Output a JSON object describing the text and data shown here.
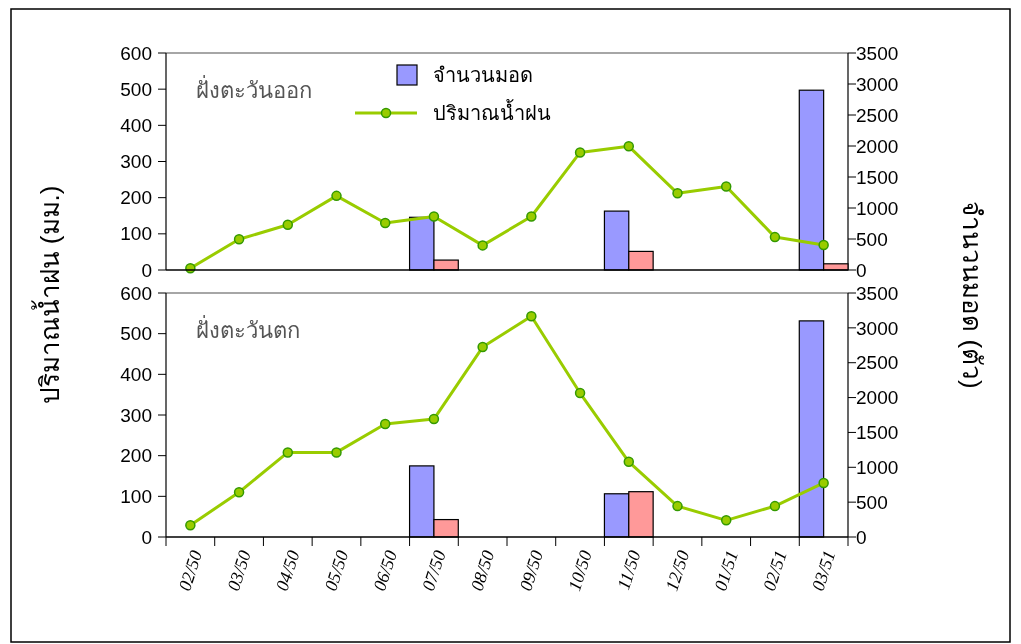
{
  "chart_data": [
    {
      "type": "bar",
      "title": "ฝั่งตะวันออก",
      "ylabel": "ปริมาณน้ำฝน (มม.)",
      "y2label": "จำนวนมอด (ตัว)",
      "categories": [
        null,
        null,
        null,
        null,
        null,
        null,
        null,
        null,
        null,
        null,
        null,
        null,
        null,
        null
      ],
      "series": [
        {
          "name": "จำนวนมอด",
          "axis": "y2",
          "color": "#9999ff",
          "values": [
            null,
            null,
            null,
            null,
            null,
            850,
            null,
            null,
            null,
            950,
            null,
            null,
            null,
            2900
          ]
        },
        {
          "axis": "y2",
          "color": "#ff9999",
          "values": [
            null,
            null,
            null,
            null,
            null,
            160,
            null,
            null,
            null,
            300,
            null,
            null,
            null,
            100
          ]
        },
        {
          "name": "ปริมาณน้ำฝน",
          "type": "line",
          "color": "#99cc00",
          "values": [
            5,
            85,
            125,
            205,
            130,
            148,
            68,
            148,
            325,
            342,
            212,
            231,
            91,
            69
          ]
        }
      ],
      "marker": "circle",
      "ylim": [
        0,
        600
      ],
      "yticks": [
        0,
        100,
        200,
        300,
        400,
        500,
        600
      ],
      "y2lim": [
        0,
        3500
      ],
      "y2ticks": [
        0,
        500,
        1000,
        1500,
        2000,
        2500,
        3000,
        3500
      ],
      "legend": "top",
      "tick_labels": "y"
    },
    {
      "type": "bar",
      "title": "ฝั่งตะวันตก",
      "categories": [
        "02/50",
        "03/50",
        "04/50",
        "05/50",
        "06/50",
        "07/50",
        "08/50",
        "09/50",
        "10/50",
        "11/50",
        "12/50",
        "01/51",
        "02/51",
        "03/51"
      ],
      "series": [
        {
          "axis": "y2",
          "color": "#9999ff",
          "values": [
            null,
            null,
            null,
            null,
            null,
            1020,
            null,
            null,
            null,
            620,
            null,
            null,
            null,
            3100
          ]
        },
        {
          "axis": "y2",
          "color": "#ff9999",
          "values": [
            null,
            null,
            null,
            null,
            null,
            250,
            null,
            null,
            null,
            650,
            null,
            null,
            null,
            null
          ]
        },
        {
          "type": "line",
          "color": "#99cc00",
          "values": [
            29,
            110,
            208,
            208,
            278,
            290,
            467,
            543,
            354,
            185,
            76,
            41,
            76,
            133
          ]
        }
      ],
      "marker": "circle",
      "ylim": [
        0,
        600
      ],
      "yticks": [
        0,
        100,
        200,
        300,
        400,
        500,
        600
      ],
      "y2lim": [
        0,
        3500
      ],
      "y2ticks": [
        0,
        500,
        1000,
        1500,
        2000,
        2500,
        3000,
        3500
      ]
    }
  ]
}
